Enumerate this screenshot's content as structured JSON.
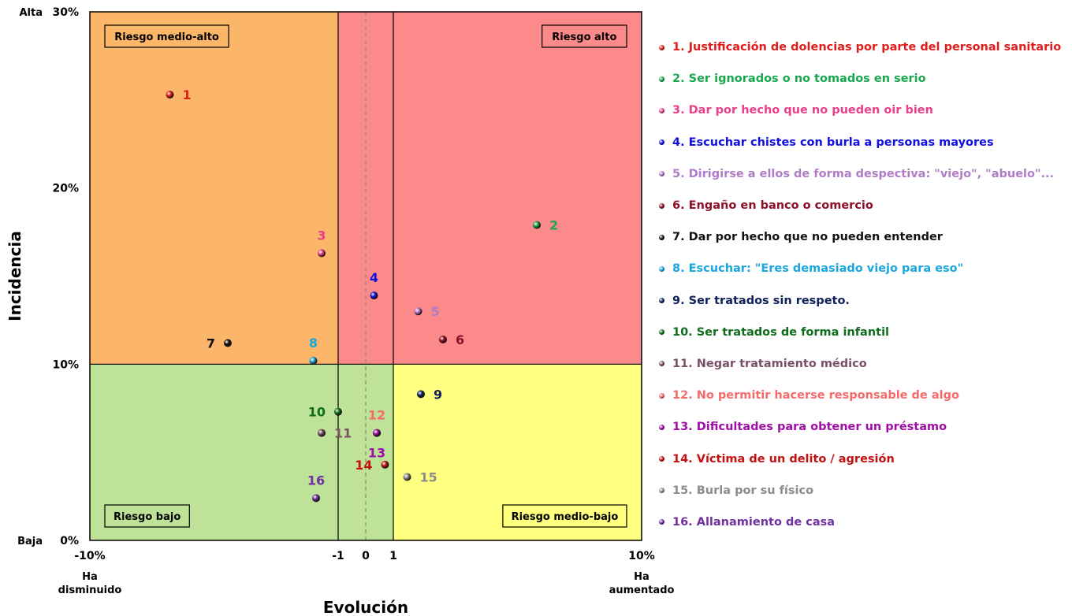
{
  "chart_data": {
    "type": "scatter",
    "xlabel": "Evolución",
    "ylabel": "Incidencia",
    "xlim": [
      -10,
      10
    ],
    "ylim": [
      0,
      30
    ],
    "x_ticks": [
      "-10%",
      "-1",
      "0",
      "1",
      "10%"
    ],
    "y_ticks": [
      "0%",
      "10%",
      "20%",
      "30%"
    ],
    "x_tick_values": [
      -10,
      -1,
      0,
      1,
      10
    ],
    "y_tick_values": [
      0,
      10,
      20,
      30
    ],
    "x_end_labels": {
      "left": "Ha\ndisminuido",
      "right": "Ha\naumentado"
    },
    "y_end_labels": {
      "top": "Alta",
      "bottom": "Baja"
    },
    "quadrants": [
      {
        "label": "Riesgo medio-alto",
        "color": "#fbb669",
        "x": [
          -10,
          -1
        ],
        "y": [
          10,
          30
        ],
        "label_pos": "top-left"
      },
      {
        "label": "Riesgo alto",
        "color": "#fd8a8a",
        "x": [
          -1,
          10
        ],
        "y": [
          10,
          30
        ],
        "label_pos": "top-right"
      },
      {
        "label": "Riesgo bajo",
        "color": "#bee297",
        "x": [
          -10,
          1
        ],
        "y": [
          0,
          10
        ],
        "label_pos": "bottom-left"
      },
      {
        "label": "Riesgo medio-bajo",
        "color": "#ffff80",
        "x": [
          1,
          10
        ],
        "y": [
          0,
          10
        ],
        "label_pos": "bottom-right"
      }
    ],
    "points": [
      {
        "id": "1",
        "x": -7.1,
        "y": 25.3,
        "color": "#e11c1c",
        "label_side": "right",
        "name": "1. Justificación de dolencias por parte del personal sanitario"
      },
      {
        "id": "2",
        "x": 6.2,
        "y": 17.9,
        "color": "#1aa84f",
        "label_side": "right",
        "name": "2. Ser ignorados o no tomados en serio"
      },
      {
        "id": "3",
        "x": -1.6,
        "y": 16.3,
        "color": "#e8408a",
        "label_side": "top",
        "name": "3. Dar por hecho que no pueden oir bien"
      },
      {
        "id": "4",
        "x": 0.3,
        "y": 13.9,
        "color": "#1010e0",
        "label_side": "top",
        "name": "4. Escuchar chistes con burla a personas mayores"
      },
      {
        "id": "5",
        "x": 1.9,
        "y": 13.0,
        "color": "#b07cc8",
        "label_side": "right",
        "name": "5. Dirigirse  a ellos de forma despectiva: \"viejo\", \"abuelo\"..."
      },
      {
        "id": "6",
        "x": 2.8,
        "y": 11.4,
        "color": "#8c1027",
        "label_side": "right",
        "name": "6. Engaño en banco o comercio"
      },
      {
        "id": "7",
        "x": -5.0,
        "y": 11.2,
        "color": "#111111",
        "label_side": "left",
        "name": "7. Dar por hecho que no pueden entender"
      },
      {
        "id": "8",
        "x": -1.9,
        "y": 10.2,
        "color": "#1aa6e0",
        "label_side": "top",
        "name": "8. Escuchar: \"Eres demasiado viejo para eso\""
      },
      {
        "id": "9",
        "x": 2.0,
        "y": 8.3,
        "color": "#10205a",
        "label_side": "right",
        "name": "9. Ser tratados sin respeto."
      },
      {
        "id": "10",
        "x": -1.0,
        "y": 7.3,
        "color": "#0f6e1c",
        "label_side": "left",
        "name": "10. Ser tratados de forma infantil"
      },
      {
        "id": "11",
        "x": -1.6,
        "y": 6.1,
        "color": "#7a5068",
        "label_side": "right",
        "name": "11. Negar tratamiento médico"
      },
      {
        "id": "12",
        "x": 0.4,
        "y": 6.1,
        "color": "#f56a6a",
        "label_side": "top",
        "name": "12. No permitir hacerse responsable de algo"
      },
      {
        "id": "13",
        "x": 0.4,
        "y": 6.1,
        "color": "#a00ea8",
        "label_side": "bottom",
        "name": "13. Dificultades para obtener un préstamo"
      },
      {
        "id": "14",
        "x": 0.7,
        "y": 4.3,
        "color": "#c41010",
        "label_side": "left",
        "name": "14. Víctima de un delito / agresión"
      },
      {
        "id": "15",
        "x": 1.5,
        "y": 3.6,
        "color": "#8c8c8c",
        "label_side": "right",
        "name": "15. Burla por su físico"
      },
      {
        "id": "16",
        "x": -1.8,
        "y": 2.4,
        "color": "#7030a0",
        "label_side": "top",
        "name": "16. Allanamiento de casa"
      }
    ]
  }
}
